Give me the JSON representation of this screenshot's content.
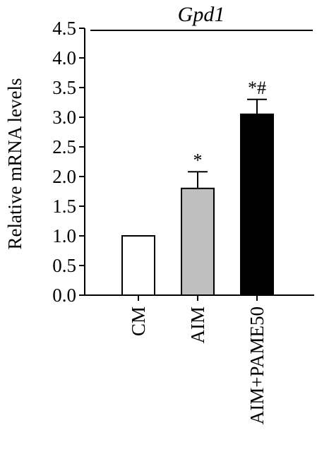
{
  "chart_data": {
    "type": "bar",
    "title": "Gpd1",
    "ylabel": "Relative mRNA levels",
    "xlabel": "",
    "categories": [
      "CM",
      "AIM",
      "AIM+PAME50"
    ],
    "values": [
      1.0,
      1.8,
      3.05
    ],
    "errors": [
      0,
      0.28,
      0.25
    ],
    "bar_colors": [
      "#ffffff",
      "#bfbfbf",
      "#000000"
    ],
    "annotations": [
      "",
      "*",
      "*#"
    ],
    "ylim": [
      0,
      4.5
    ],
    "yticks": [
      "0.0",
      "0.5",
      "1.0",
      "1.5",
      "2.0",
      "2.5",
      "3.0",
      "3.5",
      "4.0",
      "4.5"
    ],
    "grid": false,
    "legend": "none"
  }
}
